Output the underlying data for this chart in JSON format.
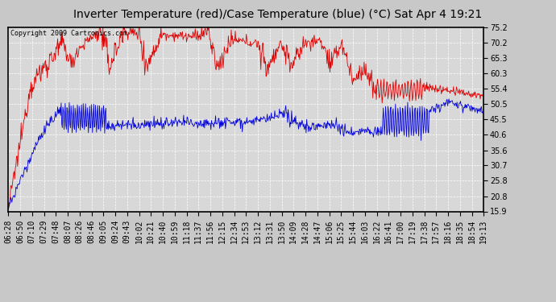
{
  "title": "Inverter Temperature (red)/Case Temperature (blue) (°C) Sat Apr 4 19:21",
  "copyright": "Copyright 2009 Cartronics.com",
  "yticks": [
    15.9,
    20.8,
    25.8,
    30.7,
    35.6,
    40.6,
    45.5,
    50.5,
    55.4,
    60.3,
    65.3,
    70.2,
    75.2
  ],
  "xlabels": [
    "06:28",
    "06:50",
    "07:10",
    "07:29",
    "07:48",
    "08:07",
    "08:26",
    "08:46",
    "09:05",
    "09:24",
    "09:43",
    "10:02",
    "10:21",
    "10:40",
    "10:59",
    "11:18",
    "11:37",
    "11:56",
    "12:15",
    "12:34",
    "12:53",
    "13:12",
    "13:31",
    "13:50",
    "14:09",
    "14:28",
    "14:47",
    "15:06",
    "15:25",
    "15:44",
    "16:03",
    "16:22",
    "16:41",
    "17:00",
    "17:19",
    "17:38",
    "17:57",
    "18:16",
    "18:35",
    "18:54",
    "19:13"
  ],
  "red_color": "#dd0000",
  "blue_color": "#0000dd",
  "bg_color": "#c8c8c8",
  "plot_bg": "#d8d8d8",
  "grid_color": "#ffffff",
  "border_color": "#000000",
  "title_fontsize": 10,
  "copyright_fontsize": 6,
  "tick_fontsize": 7,
  "ymin": 15.9,
  "ymax": 75.2
}
